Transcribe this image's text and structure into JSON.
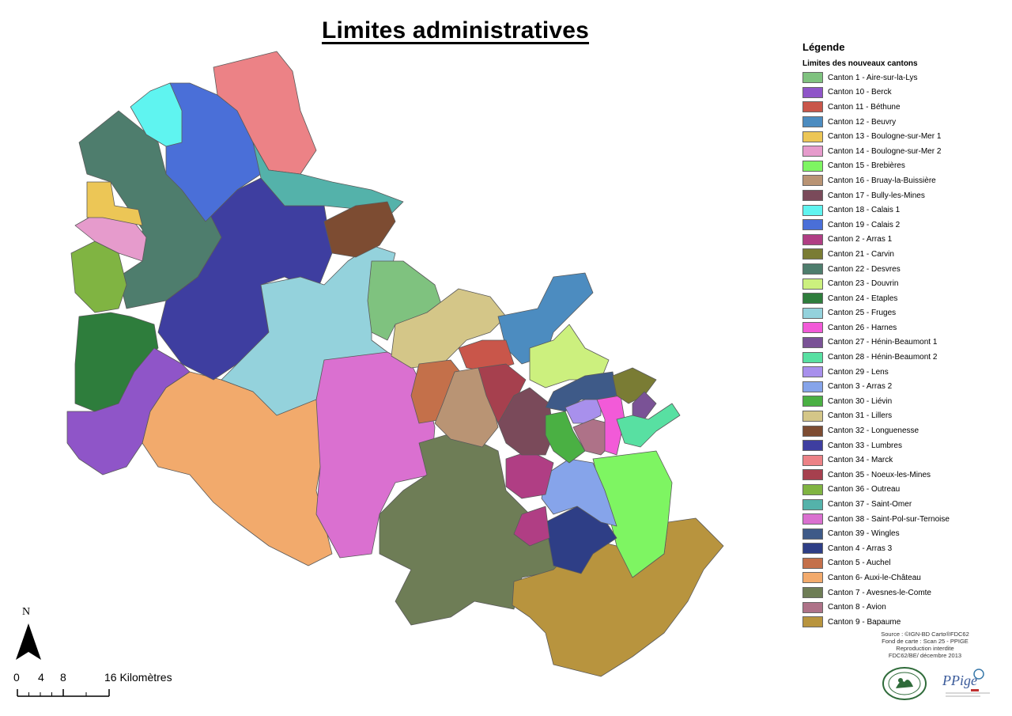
{
  "title": "Limites administratives",
  "legend": {
    "title": "Légende",
    "subtitle": "Limites des nouveaux cantons",
    "items": [
      {
        "label": "Canton 1 - Aire-sur-la-Lys",
        "color": "#7fc27f"
      },
      {
        "label": "Canton 10 - Berck",
        "color": "#8f55c8"
      },
      {
        "label": "Canton 11 - Béthune",
        "color": "#c9564a"
      },
      {
        "label": "Canton 12 - Beuvry",
        "color": "#4c8cc0"
      },
      {
        "label": "Canton 13 - Boulogne-sur-Mer 1",
        "color": "#ecc656"
      },
      {
        "label": "Canton 14 - Boulogne-sur-Mer 2",
        "color": "#e69bcc"
      },
      {
        "label": "Canton 15 - Brebières",
        "color": "#7ef562"
      },
      {
        "label": "Canton 16 - Bruay-la-Buissière",
        "color": "#b99474"
      },
      {
        "label": "Canton 17 - Bully-les-Mines",
        "color": "#7a4a5a"
      },
      {
        "label": "Canton 18 - Calais 1",
        "color": "#5ff4f0"
      },
      {
        "label": "Canton 19 - Calais 2",
        "color": "#4a6fd8"
      },
      {
        "label": "Canton 2 - Arras 1",
        "color": "#b03e84"
      },
      {
        "label": "Canton 21 - Carvin",
        "color": "#7a7c34"
      },
      {
        "label": "Canton 22 - Desvres",
        "color": "#4e7d6d"
      },
      {
        "label": "Canton 23 - Douvrin",
        "color": "#ccf07e"
      },
      {
        "label": "Canton 24 - Etaples",
        "color": "#2e7d3c"
      },
      {
        "label": "Canton 25 - Fruges",
        "color": "#94d2dc"
      },
      {
        "label": "Canton 26 - Harnes",
        "color": "#f25ad8"
      },
      {
        "label": "Canton 27 - Hénin-Beaumont 1",
        "color": "#7a5296"
      },
      {
        "label": "Canton 28 - Hénin-Beaumont 2",
        "color": "#58e0a2"
      },
      {
        "label": "Canton 29 - Lens",
        "color": "#a890ec"
      },
      {
        "label": "Canton 3 - Arras 2",
        "color": "#86a4ea"
      },
      {
        "label": "Canton 30 - Liévin",
        "color": "#4ab043"
      },
      {
        "label": "Canton 31 - Lillers",
        "color": "#d4c688"
      },
      {
        "label": "Canton 32 - Longuenesse",
        "color": "#7d4c32"
      },
      {
        "label": "Canton 33 - Lumbres",
        "color": "#3e3ea0"
      },
      {
        "label": "Canton 34 - Marck",
        "color": "#ec8286"
      },
      {
        "label": "Canton 35 - Noeux-les-Mines",
        "color": "#a6404e"
      },
      {
        "label": "Canton 36 - Outreau",
        "color": "#80b442"
      },
      {
        "label": "Canton 37 - Saint-Omer",
        "color": "#54b2aa"
      },
      {
        "label": "Canton 38 - Saint-Pol-sur-Ternoise",
        "color": "#da70d0"
      },
      {
        "label": "Canton 39 - Wingles",
        "color": "#3e5a88"
      },
      {
        "label": "Canton 4 - Arras 3",
        "color": "#2e3e86"
      },
      {
        "label": "Canton 5 - Auchel",
        "color": "#c4704a"
      },
      {
        "label": "Canton 6- Auxi-le-Château",
        "color": "#f2aa6c"
      },
      {
        "label": "Canton 7 - Avesnes-le-Comte",
        "color": "#6e7d56"
      },
      {
        "label": "Canton 8 - Avion",
        "color": "#ae7288"
      },
      {
        "label": "Canton 9 - Bapaume",
        "color": "#b8943e"
      }
    ]
  },
  "source": [
    "Source : ©IGN-BD Carto®FDC62",
    "Fond de carte : Scan 25 - PPIGE",
    "Reproduction interdite",
    "FDC62/BE/ décembre 2013"
  ],
  "north_label": "N",
  "scale": {
    "labels": [
      "0",
      "4",
      "8",
      "16 Kilomètres"
    ],
    "values_km": [
      0,
      4,
      8,
      16
    ]
  },
  "logos": [
    {
      "name": "fdc62-logo"
    },
    {
      "name": "ppige-logo",
      "text": "PPige"
    }
  ]
}
